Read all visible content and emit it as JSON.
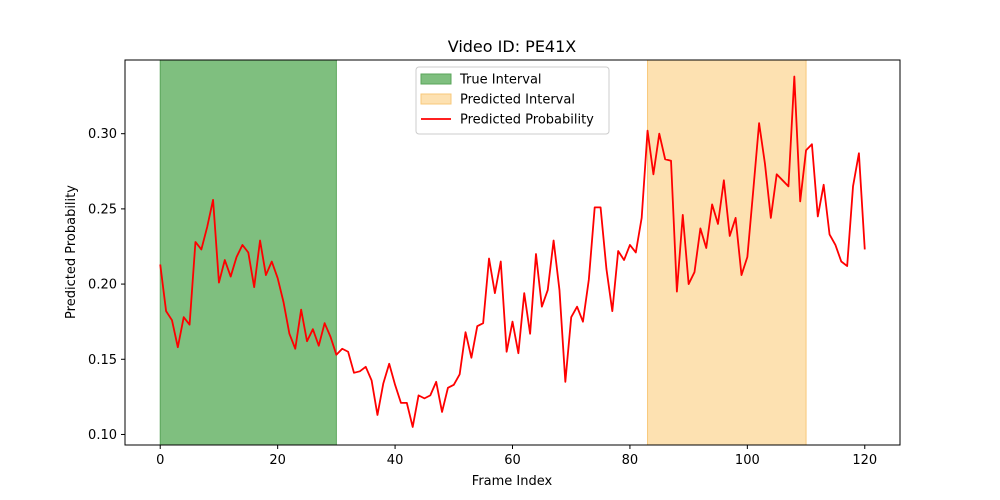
{
  "chart_data": {
    "type": "line",
    "title": "Video ID: PE41X",
    "xlabel": "Frame Index",
    "ylabel": "Predicted Probability",
    "xlim": [
      -6,
      126
    ],
    "ylim": [
      0.093,
      0.349
    ],
    "x_ticks": [
      0,
      20,
      40,
      60,
      80,
      100,
      120
    ],
    "y_ticks": [
      0.1,
      0.15,
      0.2,
      0.25,
      0.3
    ],
    "x_tick_labels": [
      "0",
      "20",
      "40",
      "60",
      "80",
      "100",
      "120"
    ],
    "y_tick_labels": [
      "0.10",
      "0.15",
      "0.20",
      "0.25",
      "0.30"
    ],
    "grid": false,
    "legend_position": "upper center",
    "legend": [
      {
        "label": "True Interval",
        "kind": "patch",
        "color": "#7fbf7f",
        "edge": "#5aa65a"
      },
      {
        "label": "Predicted Interval",
        "kind": "patch",
        "color": "#fde1b1",
        "edge": "#f8c87a"
      },
      {
        "label": "Predicted Probability",
        "kind": "line",
        "color": "#ff0000"
      }
    ],
    "spans": [
      {
        "name": "True Interval",
        "start": 0,
        "end": 30,
        "color": "#7fbf7f",
        "edge": "#5aa65a"
      },
      {
        "name": "Predicted Interval",
        "start": 83,
        "end": 110,
        "color": "#fde1b1",
        "edge": "#f8c87a"
      }
    ],
    "series": [
      {
        "name": "Predicted Probability",
        "color": "#ff0000",
        "x": [
          0,
          1,
          2,
          3,
          4,
          5,
          6,
          7,
          8,
          9,
          10,
          11,
          12,
          13,
          14,
          15,
          16,
          17,
          18,
          19,
          20,
          21,
          22,
          23,
          24,
          25,
          26,
          27,
          28,
          29,
          30,
          31,
          32,
          33,
          34,
          35,
          36,
          37,
          38,
          39,
          40,
          41,
          42,
          43,
          44,
          45,
          46,
          47,
          48,
          49,
          50,
          51,
          52,
          53,
          54,
          55,
          56,
          57,
          58,
          59,
          60,
          61,
          62,
          63,
          64,
          65,
          66,
          67,
          68,
          69,
          70,
          71,
          72,
          73,
          74,
          75,
          76,
          77,
          78,
          79,
          80,
          81,
          82,
          83,
          84,
          85,
          86,
          87,
          88,
          89,
          90,
          91,
          92,
          93,
          94,
          95,
          96,
          97,
          98,
          99,
          100,
          101,
          102,
          103,
          104,
          105,
          106,
          107,
          108,
          109,
          110,
          111,
          112,
          113,
          114,
          115,
          116,
          117,
          118,
          119,
          120
        ],
        "values": [
          0.213,
          0.182,
          0.176,
          0.158,
          0.178,
          0.173,
          0.228,
          0.223,
          0.238,
          0.256,
          0.201,
          0.216,
          0.205,
          0.218,
          0.226,
          0.221,
          0.198,
          0.229,
          0.206,
          0.215,
          0.204,
          0.188,
          0.167,
          0.157,
          0.183,
          0.162,
          0.17,
          0.159,
          0.174,
          0.165,
          0.153,
          0.157,
          0.155,
          0.141,
          0.142,
          0.145,
          0.136,
          0.113,
          0.134,
          0.147,
          0.133,
          0.121,
          0.121,
          0.105,
          0.126,
          0.124,
          0.126,
          0.135,
          0.115,
          0.131,
          0.133,
          0.14,
          0.168,
          0.151,
          0.172,
          0.174,
          0.217,
          0.194,
          0.215,
          0.155,
          0.175,
          0.154,
          0.194,
          0.167,
          0.22,
          0.185,
          0.196,
          0.229,
          0.196,
          0.135,
          0.178,
          0.185,
          0.175,
          0.203,
          0.251,
          0.251,
          0.21,
          0.182,
          0.222,
          0.216,
          0.226,
          0.221,
          0.244,
          0.302,
          0.273,
          0.3,
          0.283,
          0.282,
          0.195,
          0.246,
          0.2,
          0.208,
          0.237,
          0.224,
          0.253,
          0.24,
          0.269,
          0.232,
          0.244,
          0.206,
          0.218,
          0.262,
          0.307,
          0.28,
          0.244,
          0.273,
          0.269,
          0.265,
          0.338,
          0.255,
          0.289,
          0.293,
          0.245,
          0.266,
          0.233,
          0.226,
          0.215,
          0.212,
          0.265,
          0.287,
          0.223
        ]
      }
    ]
  }
}
